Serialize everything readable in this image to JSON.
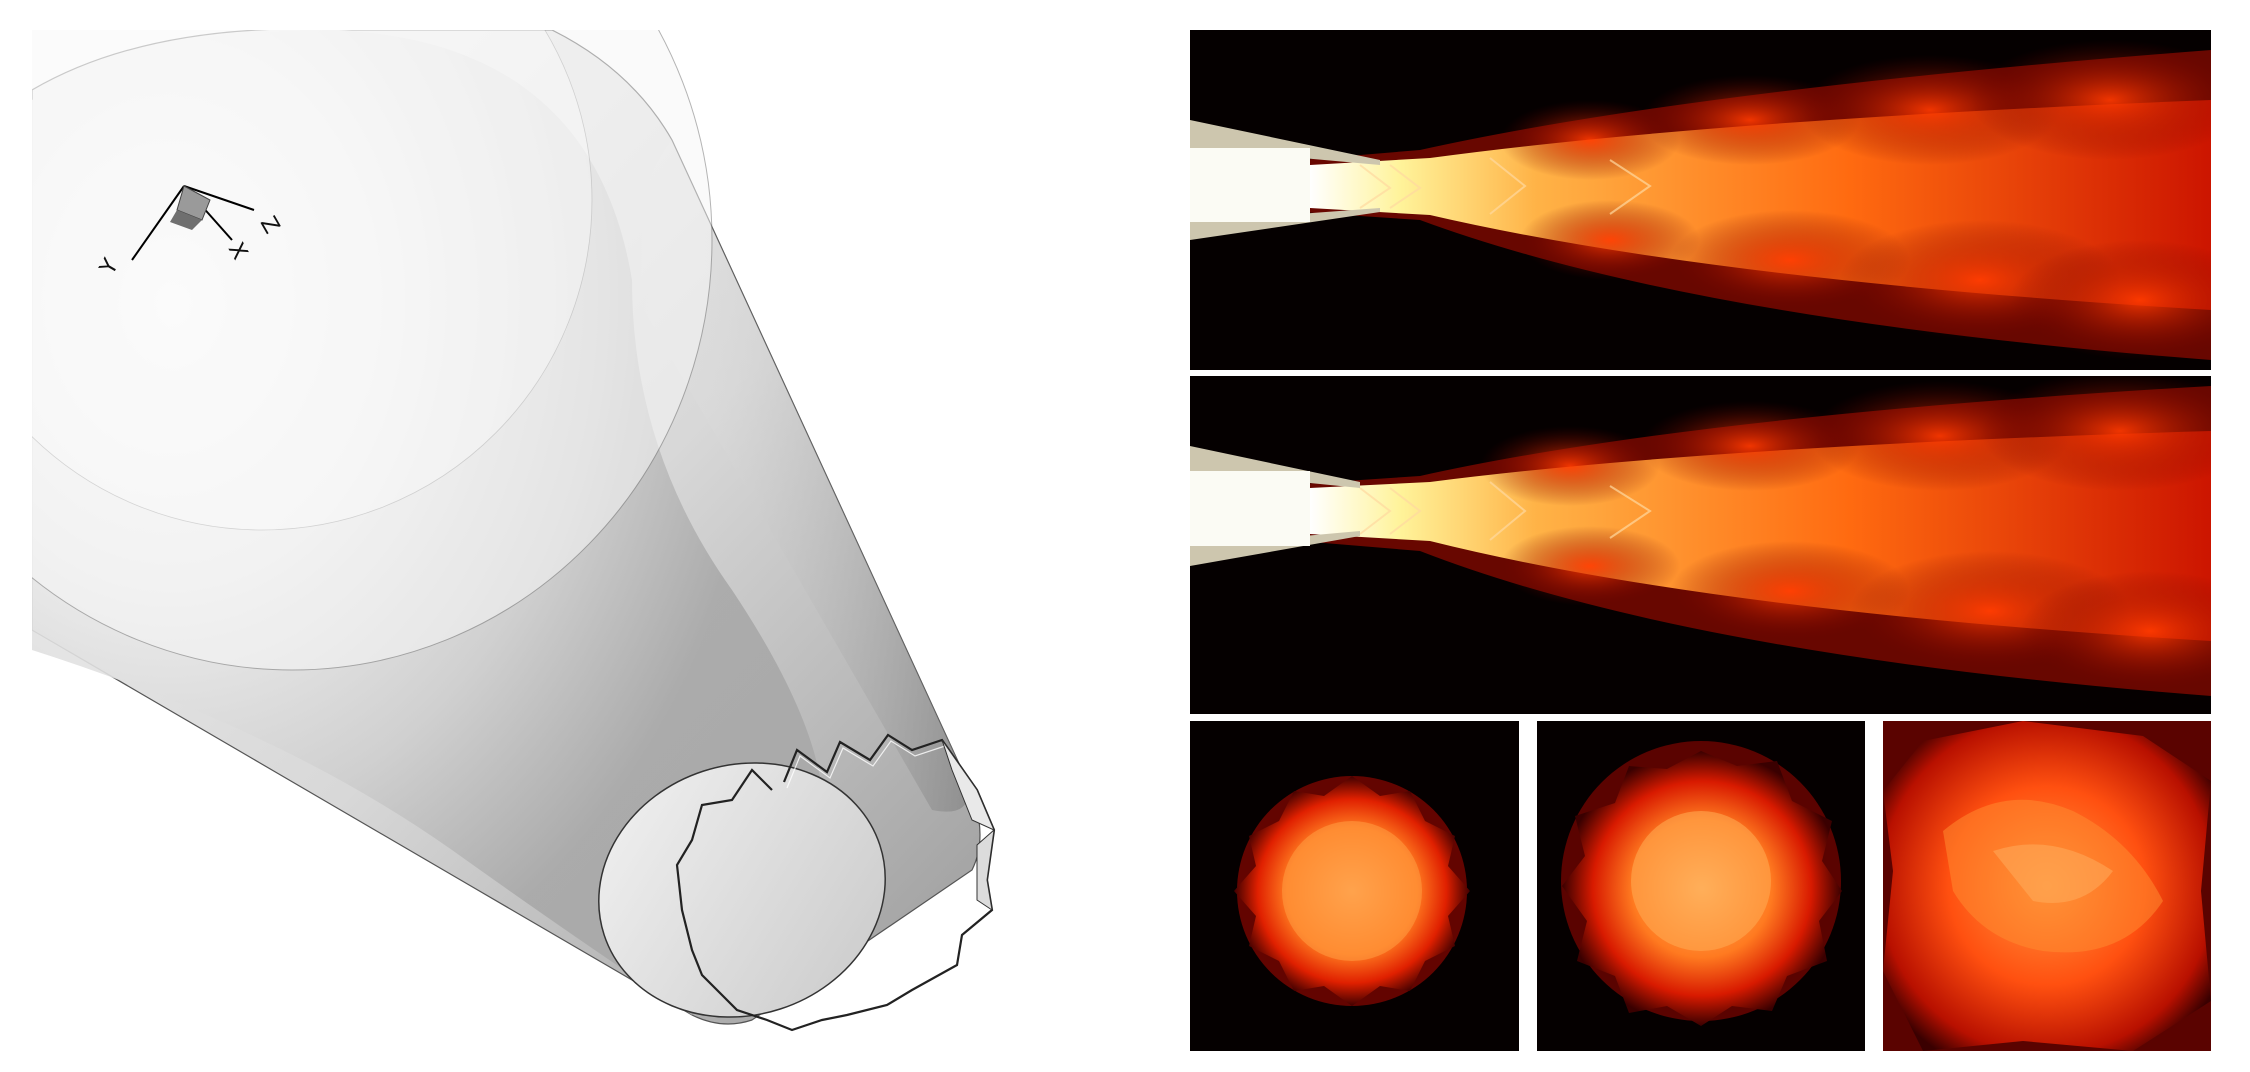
{
  "axes_triad": {
    "x_label": "X",
    "y_label": "Y",
    "z_label": "Z"
  },
  "colors": {
    "background": "#ffffff",
    "nozzle_surface": "#d9d9d9",
    "plume_background": "#050000",
    "plume_hot": "#fff1b0",
    "plume_mid": "#ff6a00",
    "plume_cool": "#b00000",
    "nozzle_lip_side": "#cdc6ae"
  },
  "panels": {
    "nozzle_view": "chevron-nozzle-3d",
    "side_views": [
      "plume-side-top",
      "plume-side-bottom"
    ],
    "cross_sections": [
      "slice-1",
      "slice-2",
      "slice-3"
    ]
  }
}
